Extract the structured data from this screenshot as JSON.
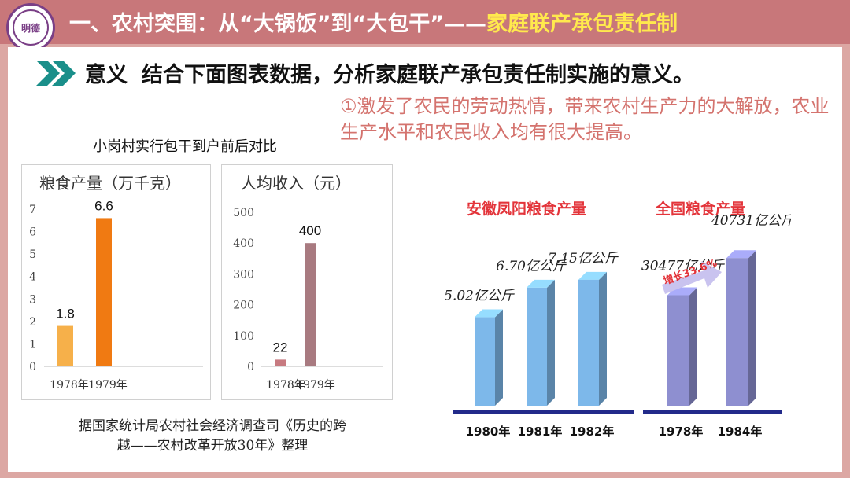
{
  "header": {
    "logo_text": "明德",
    "title_main": "一、农村突围：从“大锅饭”到“大包干”——",
    "title_highlight": "家庭联产承包责任制"
  },
  "main": {
    "meaning_label": "意义",
    "meaning_text": "结合下面图表数据，分析家庭联产承包责任制实施的意义。",
    "conclusion": "①激发了农民的劳动热情，带来农村生产力的大解放，农业生产水平和农民收入均有很大提高。",
    "left_chart_title": "小岗村实行包干到户前后对比",
    "source_line1": "据国家统计局农村社会经济调查司《历史的跨",
    "source_line2": "越——农村改革开放30年》整理"
  },
  "colors": {
    "header_bg": "#c8777a",
    "page_bg": "#dca7a3",
    "accent_text": "#d4736e",
    "title_highlight": "#ffe94d",
    "arrow": "#1a8f8a"
  },
  "chart_data": [
    {
      "type": "bar",
      "title": "粮食产量（万千克）",
      "categories": [
        "1978年",
        "1979年"
      ],
      "values": [
        1.8,
        6.6
      ],
      "colors": [
        "#f6b04a",
        "#f07a12"
      ],
      "ylim": [
        0,
        7
      ],
      "yticks": [
        0,
        1,
        2,
        3,
        4,
        5,
        6,
        7
      ],
      "grid": false
    },
    {
      "type": "bar",
      "title": "人均收入（元）",
      "categories": [
        "1978年",
        "1979年"
      ],
      "values": [
        22,
        400
      ],
      "colors": [
        "#c77a80",
        "#a87a80"
      ],
      "ylim": [
        0,
        500
      ],
      "yticks": [
        0,
        100,
        200,
        300,
        400,
        500
      ],
      "grid": false
    },
    {
      "type": "bar",
      "title": "安徽凤阳粮食产量",
      "categories": [
        "1980年",
        "1981年",
        "1982年"
      ],
      "values": [
        5.02,
        6.7,
        7.15
      ],
      "labels": [
        "5.02亿公斤",
        "6.70亿公斤",
        "7.15亿公斤"
      ],
      "color": "#7db8ea"
    },
    {
      "type": "bar",
      "title": "全国粮食产量",
      "categories": [
        "1978年",
        "1984年"
      ],
      "values": [
        30477,
        40731
      ],
      "labels": [
        "30477亿公斤",
        "40731亿公斤"
      ],
      "color": "#8e8fd0",
      "annotation": "增长33.6%"
    }
  ]
}
